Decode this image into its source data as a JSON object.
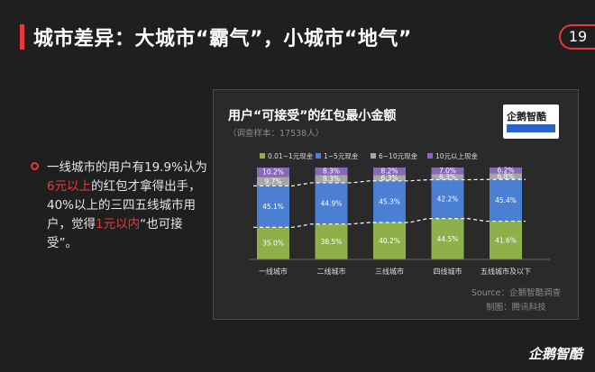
{
  "header": {
    "title": "城市差异：大城市“霸气”，小城市“地气”",
    "page_number": "19"
  },
  "bullet": {
    "p1": "一线城市的用户有19.9%认为",
    "h1": "6元以上",
    "p2": "的红包才拿得出手，40%以上的三四五线城市用户，觉得",
    "h2": "1元以内",
    "p3": "“也可接受”。"
  },
  "chart": {
    "title": "用户“可接受”的红包最小金额",
    "subtitle": "（调查样本：17538人）",
    "logo_text": "企鹅智酷",
    "source_line1": "Source：企鹅智酷调查",
    "source_line2": "制图：腾讯科技"
  },
  "brand": "企鹅智酷",
  "chart_data": {
    "type": "bar",
    "stacked": true,
    "categories": [
      "一线城市",
      "二线城市",
      "三线城市",
      "四线城市",
      "五线城市及以下"
    ],
    "series": [
      {
        "name": "0.01~1元现金",
        "color": "#8db04a",
        "values": [
          35.0,
          38.5,
          40.2,
          44.5,
          41.6
        ],
        "labels": [
          "35.0%",
          "38.5%",
          "40.2%",
          "44.5%",
          "41.6%"
        ]
      },
      {
        "name": "1~5元现金",
        "color": "#4a7fd1",
        "values": [
          45.1,
          44.9,
          45.3,
          42.2,
          45.4
        ],
        "labels": [
          "45.1%",
          "44.9%",
          "45.3%",
          "42.2%",
          "45.4%"
        ]
      },
      {
        "name": "6~10元现金",
        "color": "#a6a6a6",
        "values": [
          9.7,
          8.3,
          6.3,
          6.3,
          6.8
        ],
        "labels": [
          "9.7%",
          "8.3%",
          "6.3%",
          "6.3%",
          "6.8%"
        ]
      },
      {
        "name": "10元以上现金",
        "color": "#8a67b8",
        "values": [
          10.2,
          8.3,
          8.2,
          7.0,
          6.2
        ],
        "labels": [
          "10.2%",
          "8.3%",
          "8.2%",
          "7.0%",
          "6.2%"
        ]
      }
    ],
    "ylim": [
      0,
      100
    ],
    "legend": "top",
    "grid": false
  }
}
